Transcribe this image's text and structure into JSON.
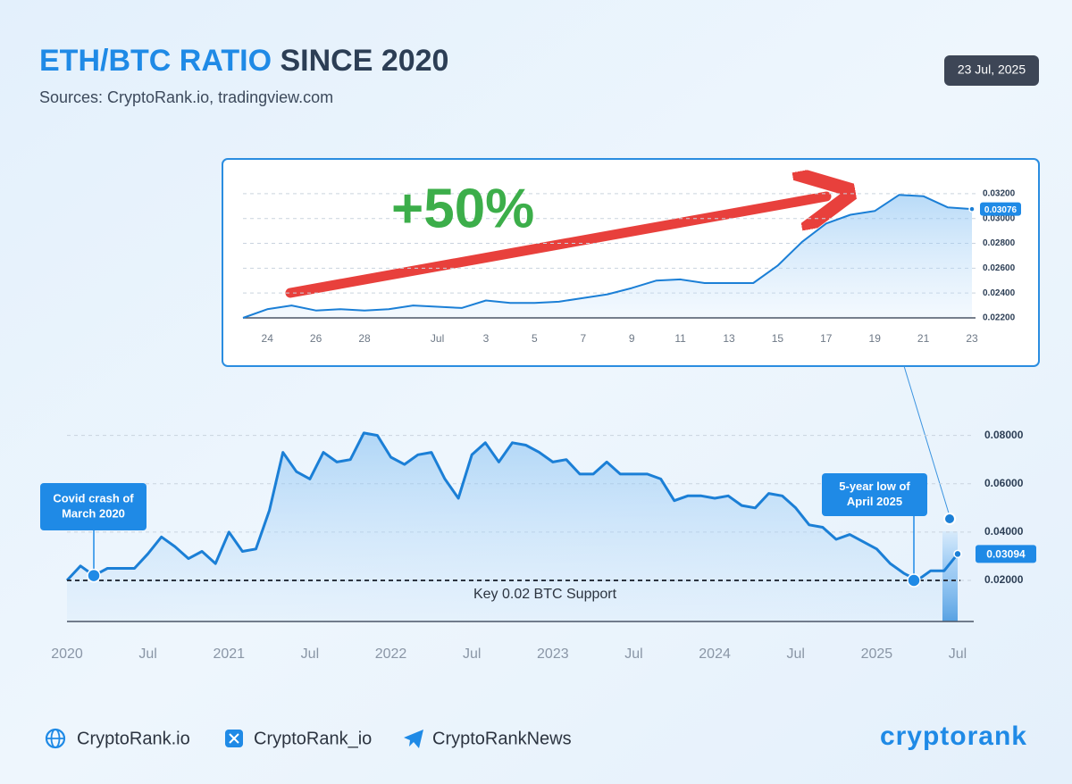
{
  "header": {
    "title_highlight": "ETH/BTC RATIO",
    "title_rest": "SINCE 2020",
    "subtitle": "Sources: CryptoRank.io, tradingview.com",
    "date": "23 Jul, 2025"
  },
  "chart_data": [
    {
      "type": "line",
      "color": "#1b7fd6",
      "grid": true,
      "categories": [
        "2020",
        null,
        null,
        null,
        null,
        null,
        "Jul",
        null,
        null,
        null,
        null,
        null,
        "2021",
        null,
        null,
        null,
        null,
        null,
        "Jul",
        null,
        null,
        null,
        null,
        null,
        "2022",
        null,
        null,
        null,
        null,
        null,
        "Jul",
        null,
        null,
        null,
        null,
        null,
        "2023",
        null,
        null,
        null,
        null,
        null,
        "Jul",
        null,
        null,
        null,
        null,
        null,
        "2024",
        null,
        null,
        null,
        null,
        null,
        "Jul",
        null,
        null,
        null,
        null,
        null,
        "2025",
        null,
        null,
        null,
        null,
        null,
        "Jul"
      ],
      "values": [
        0.02,
        0.026,
        0.022,
        0.025,
        0.025,
        0.025,
        0.031,
        0.038,
        0.034,
        0.029,
        0.032,
        0.027,
        0.04,
        0.032,
        0.033,
        0.049,
        0.073,
        0.065,
        0.062,
        0.073,
        0.069,
        0.07,
        0.081,
        0.08,
        0.071,
        0.068,
        0.072,
        0.073,
        0.062,
        0.054,
        0.072,
        0.077,
        0.069,
        0.077,
        0.076,
        0.073,
        0.069,
        0.07,
        0.064,
        0.064,
        0.069,
        0.064,
        0.064,
        0.064,
        0.062,
        0.053,
        0.055,
        0.055,
        0.054,
        0.055,
        0.051,
        0.05,
        0.056,
        0.055,
        0.05,
        0.043,
        0.042,
        0.037,
        0.039,
        0.036,
        0.033,
        0.027,
        0.023,
        0.02,
        0.024,
        0.024,
        0.03094
      ],
      "ylim": [
        0.003,
        0.088
      ],
      "yticks": [
        {
          "value": 0.02,
          "label": "0.02000"
        },
        {
          "value": 0.04,
          "label": "0.04000"
        },
        {
          "value": 0.06,
          "label": "0.06000"
        },
        {
          "value": 0.08,
          "label": "0.08000"
        }
      ],
      "reference_line": {
        "value": 0.02,
        "label": "Key 0.02 BTC Support"
      },
      "annotations": [
        {
          "text": [
            "Covid crash of",
            "March 2020"
          ]
        },
        {
          "text": [
            "5-year low of",
            "April 2025"
          ]
        }
      ]
    },
    {
      "type": "line",
      "color": "#1b7fd6",
      "grid": true,
      "categories": [
        null,
        "24",
        null,
        "26",
        null,
        "28",
        null,
        null,
        "Jul",
        null,
        "3",
        null,
        "5",
        null,
        "7",
        null,
        "9",
        null,
        "11",
        null,
        "13",
        null,
        "15",
        null,
        "17",
        null,
        "19",
        null,
        "21",
        null,
        "23"
      ],
      "values": [
        0.022,
        0.0227,
        0.023,
        0.0226,
        0.0227,
        0.0226,
        0.0227,
        0.023,
        0.0229,
        0.0228,
        0.0234,
        0.0232,
        0.0232,
        0.0233,
        0.0236,
        0.0239,
        0.0244,
        0.025,
        0.0251,
        0.0248,
        0.0248,
        0.0248,
        0.0262,
        0.0281,
        0.0296,
        0.0303,
        0.0306,
        0.0319,
        0.0318,
        0.0309,
        0.03076
      ],
      "ylim": [
        0.022,
        0.0335
      ],
      "yticks": [
        {
          "value": 0.022,
          "label": "0.02200"
        },
        {
          "value": 0.024,
          "label": "0.02400"
        },
        {
          "value": 0.026,
          "label": "0.02600"
        },
        {
          "value": 0.028,
          "label": "0.02800"
        },
        {
          "value": 0.03,
          "label": "0.03000"
        },
        {
          "value": 0.032,
          "label": "0.03200"
        }
      ],
      "annotations": [
        {
          "text": "+50%"
        }
      ]
    }
  ],
  "footer": {
    "links": [
      "CryptoRank.io",
      "CryptoRank_io",
      "CryptoRankNews"
    ],
    "logo": "cryptorank"
  }
}
